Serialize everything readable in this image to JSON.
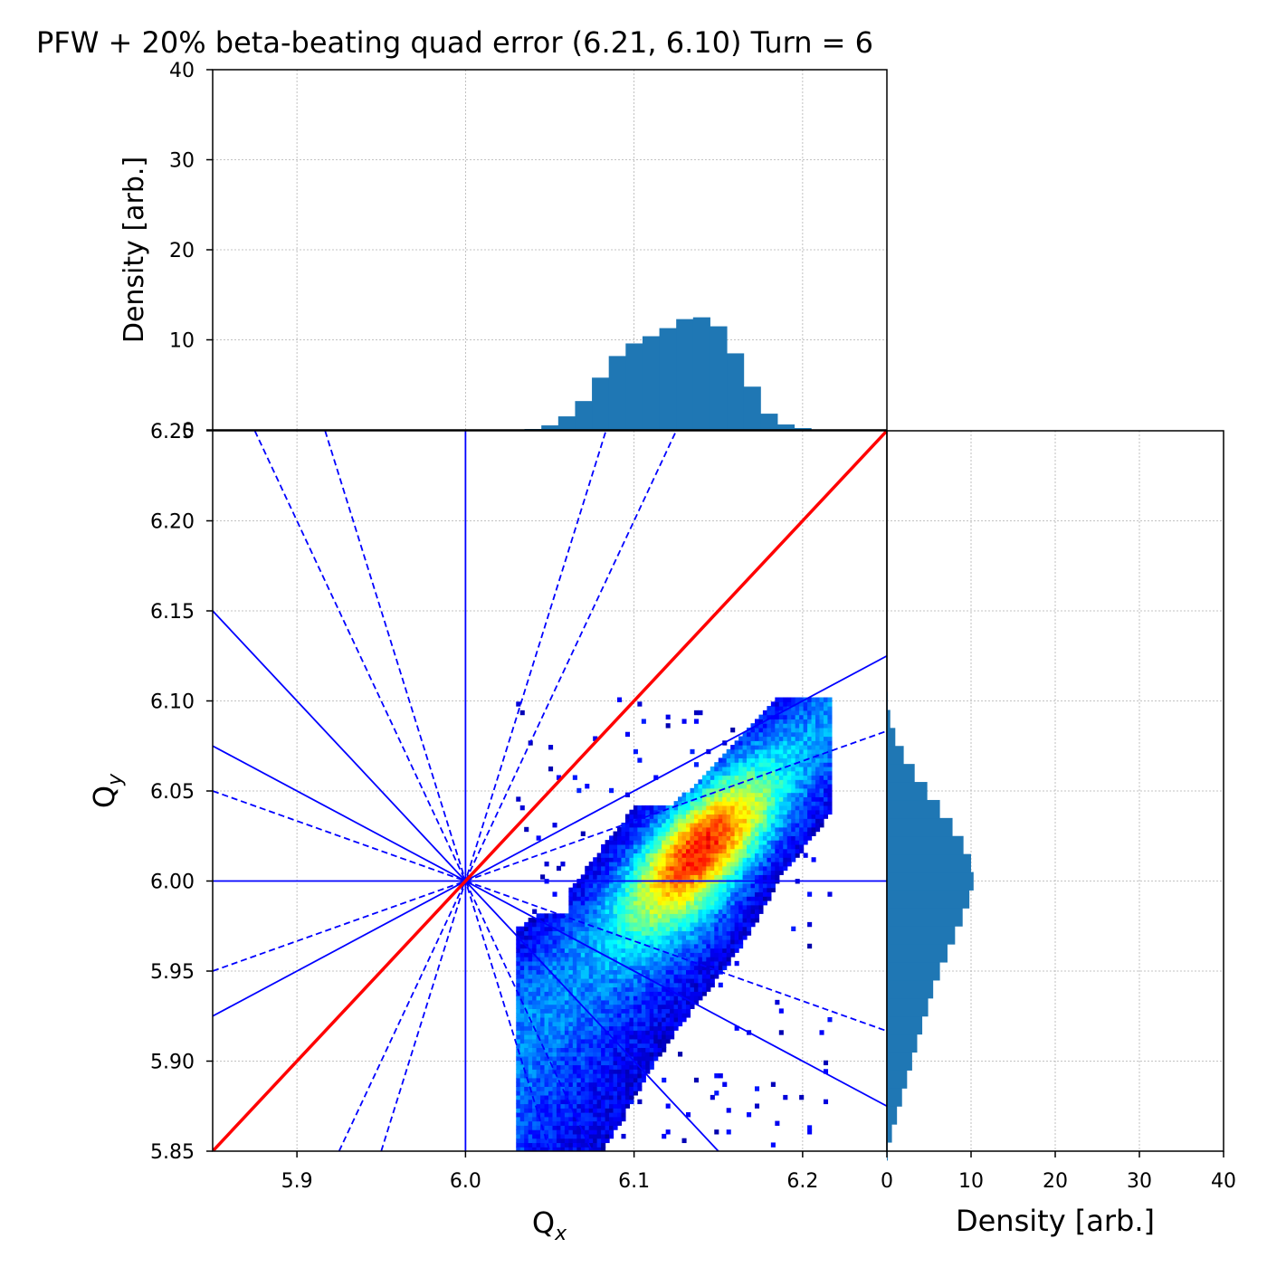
{
  "title": "PFW + 20% beta-beating quad error (6.21, 6.10) Turn = 6",
  "colors": {
    "histogram": "#1f77b4",
    "resonance_lines": "#0000ff",
    "diagonal": "#ff0000",
    "grid": "#b0b0b0"
  },
  "chart_data": [
    {
      "id": "tune-footprint",
      "type": "heatmap",
      "xlabel": "Q",
      "xlabel_sub": "x",
      "ylabel": "Q",
      "ylabel_sub": "y",
      "xlim": [
        5.85,
        6.25
      ],
      "ylim": [
        5.85,
        6.25
      ],
      "x_ticks": [
        "5.9",
        "6.0",
        "6.1",
        "6.2"
      ],
      "x_tick_values": [
        5.9,
        6.0,
        6.1,
        6.2
      ],
      "y_ticks": [
        "5.85",
        "5.90",
        "5.95",
        "6.00",
        "6.05",
        "6.10",
        "6.15",
        "6.20",
        "6.25"
      ],
      "y_tick_values": [
        5.85,
        5.9,
        5.95,
        6.0,
        6.05,
        6.1,
        6.15,
        6.2,
        6.25
      ],
      "grid": true,
      "colormap": "jet",
      "density_peak": {
        "x": 6.135,
        "y": 6.02
      },
      "footprint_extent": {
        "x": [
          6.05,
          6.21
        ],
        "y": [
          5.85,
          6.1
        ]
      },
      "resonance_lines": [
        {
          "style": "solid",
          "points": [
            [
              6.0,
              5.85
            ],
            [
              6.0,
              6.25
            ]
          ]
        },
        {
          "style": "solid",
          "points": [
            [
              5.85,
              6.0
            ],
            [
              6.25,
              6.0
            ]
          ]
        },
        {
          "style": "solid",
          "points": [
            [
              5.85,
              5.925
            ],
            [
              6.25,
              6.125
            ]
          ]
        },
        {
          "style": "solid",
          "points": [
            [
              5.85,
              6.075
            ],
            [
              6.25,
              5.875
            ]
          ]
        },
        {
          "style": "solid",
          "points": [
            [
              5.85,
              6.15
            ],
            [
              6.15,
              5.85
            ]
          ]
        },
        {
          "style": "dashed",
          "points": [
            [
              5.85,
              5.95
            ],
            [
              6.25,
              6.0833
            ]
          ]
        },
        {
          "style": "dashed",
          "points": [
            [
              5.85,
              6.05
            ],
            [
              6.25,
              5.9167
            ]
          ]
        },
        {
          "style": "dashed",
          "points": [
            [
              5.925,
              5.85
            ],
            [
              6.125,
              6.25
            ]
          ]
        },
        {
          "style": "dashed",
          "points": [
            [
              5.95,
              5.85
            ],
            [
              6.0833,
              6.25
            ]
          ]
        },
        {
          "style": "dashed",
          "points": [
            [
              5.875,
              6.25
            ],
            [
              6.075,
              5.85
            ]
          ]
        },
        {
          "style": "dashed",
          "points": [
            [
              5.9167,
              6.25
            ],
            [
              6.05,
              5.85
            ]
          ]
        }
      ],
      "diagonal": {
        "points": [
          [
            5.85,
            5.85
          ],
          [
            6.25,
            6.25
          ]
        ]
      }
    },
    {
      "id": "qx-histogram",
      "type": "bar",
      "ylabel": "Density [arb.]",
      "ylim": [
        0,
        40
      ],
      "y_ticks": [
        "0",
        "10",
        "20",
        "30",
        "40"
      ],
      "y_tick_values": [
        0,
        10,
        20,
        30,
        40
      ],
      "grid": true,
      "x": [
        6.04,
        6.05,
        6.06,
        6.07,
        6.08,
        6.09,
        6.1,
        6.11,
        6.12,
        6.13,
        6.14,
        6.15,
        6.16,
        6.17,
        6.18,
        6.19,
        6.2,
        6.21
      ],
      "values": [
        0.1,
        0.5,
        1.5,
        3.2,
        5.8,
        8.2,
        9.6,
        10.4,
        11.3,
        12.3,
        12.5,
        11.5,
        8.5,
        4.8,
        1.8,
        0.6,
        0.2,
        0.05
      ]
    },
    {
      "id": "qy-histogram",
      "type": "bar",
      "orientation": "horizontal",
      "xlabel": "Density [arb.]",
      "xlim": [
        0,
        40
      ],
      "x_ticks": [
        "0",
        "10",
        "20",
        "30",
        "40"
      ],
      "x_tick_values": [
        0,
        10,
        20,
        30,
        40
      ],
      "grid": true,
      "y": [
        5.85,
        5.86,
        5.87,
        5.88,
        5.89,
        5.9,
        5.91,
        5.92,
        5.93,
        5.94,
        5.95,
        5.96,
        5.97,
        5.98,
        5.99,
        6.0,
        6.01,
        6.02,
        6.03,
        6.04,
        6.05,
        6.06,
        6.07,
        6.08,
        6.09,
        6.1
      ],
      "values": [
        0.1,
        0.6,
        1.2,
        1.8,
        2.4,
        3.0,
        3.6,
        4.2,
        4.9,
        5.5,
        6.3,
        7.2,
        8.1,
        9.0,
        9.8,
        10.3,
        10.0,
        9.1,
        7.8,
        6.3,
        4.8,
        3.3,
        2.0,
        1.0,
        0.4,
        0.1
      ]
    }
  ]
}
